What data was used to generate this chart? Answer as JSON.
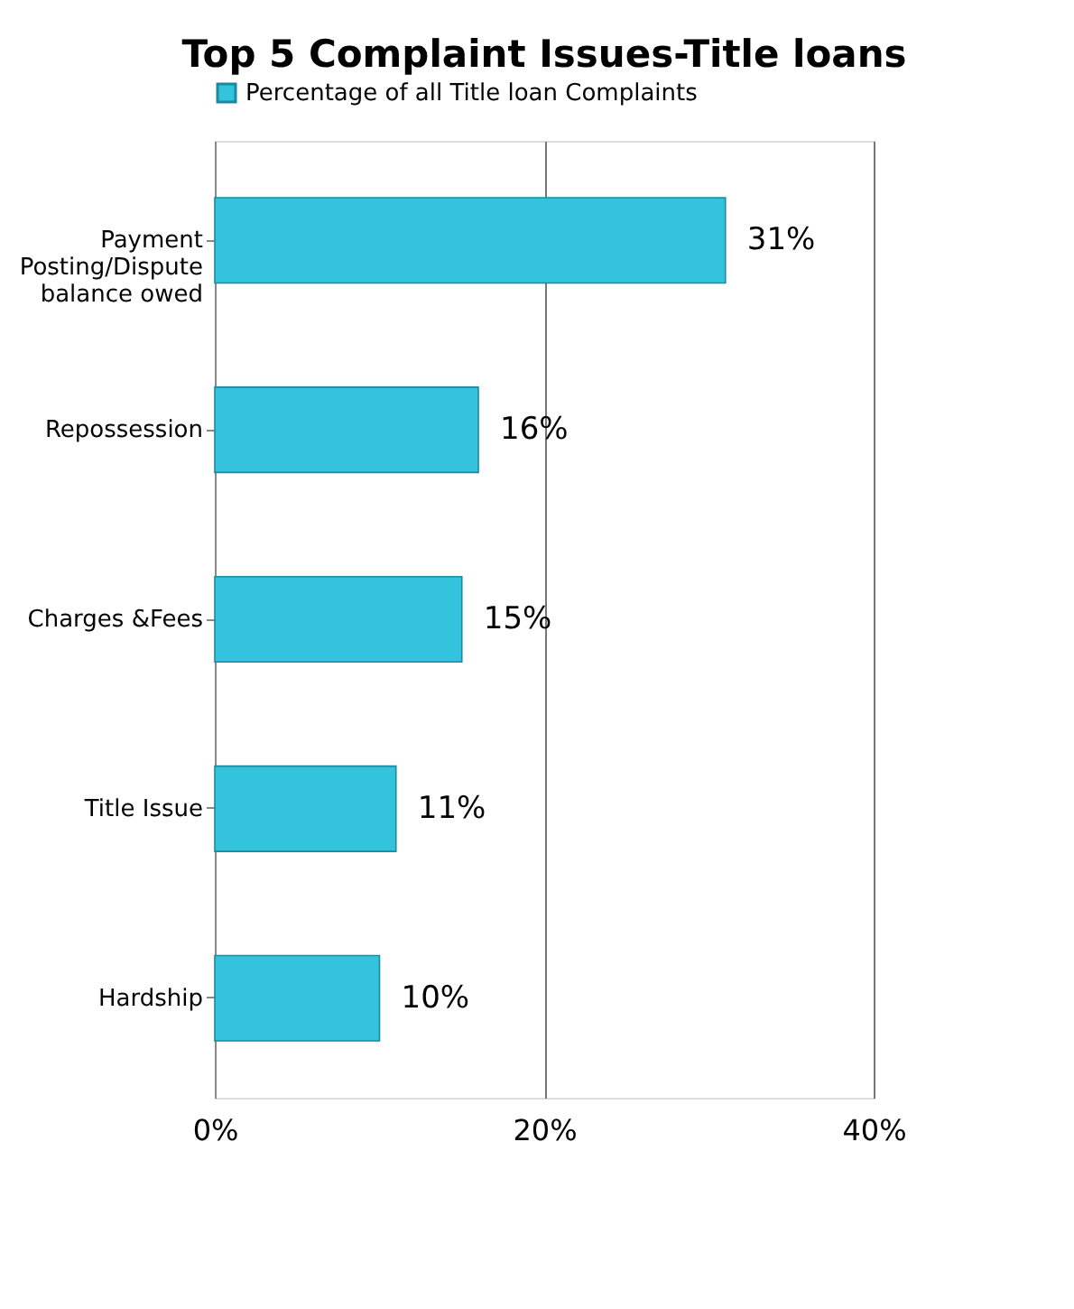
{
  "chart_data": {
    "type": "bar",
    "orientation": "horizontal",
    "title": "Top 5 Complaint Issues-Title loans",
    "categories": [
      "Payment Posting/Dispute balance owed",
      "Repossession",
      "Charges &Fees",
      "Title Issue",
      "Hardship"
    ],
    "series": [
      {
        "name": "Percentage of all Title loan Complaints",
        "color": "#33c3dd",
        "values": [
          31,
          16,
          15,
          11,
          10
        ],
        "value_labels": [
          "31%",
          "16%",
          "15%",
          "11%",
          "10%"
        ]
      }
    ],
    "xlim": [
      0,
      40
    ],
    "xticks": [
      {
        "value": 0,
        "label": "0%"
      },
      {
        "value": 20,
        "label": "20%"
      },
      {
        "value": 40,
        "label": "40%"
      }
    ],
    "grid": "x",
    "legend": "top left"
  }
}
